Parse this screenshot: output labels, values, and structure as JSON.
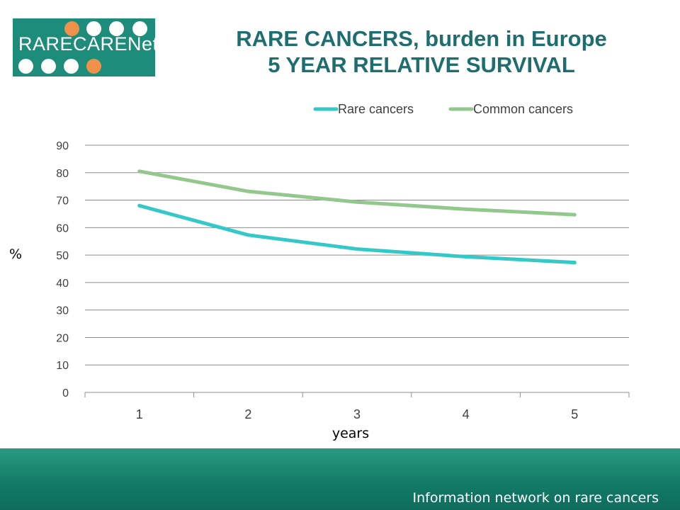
{
  "logo": {
    "text": "RARECARENet"
  },
  "title": {
    "line1": "RARE CANCERS, burden in Europe",
    "line2": "5 YEAR RELATIVE SURVIVAL"
  },
  "footer": {
    "text": "Information network on rare cancers"
  },
  "colors": {
    "rare": "#34c8c8",
    "common": "#92c88c",
    "title": "#1e6e70",
    "footer": "#137b68",
    "logo_bg": "#1e8c7a",
    "logo_accent": "#f0914a"
  },
  "chart_data": {
    "type": "line",
    "categories": [
      "1",
      "2",
      "3",
      "4",
      "5"
    ],
    "series": [
      {
        "name": "Rare cancers",
        "values": [
          68,
          57.3,
          52.2,
          49.4,
          47.3
        ]
      },
      {
        "name": "Common cancers",
        "values": [
          80.5,
          73.2,
          69.3,
          66.7,
          64.7
        ]
      }
    ],
    "xlabel": "years",
    "ylabel": "%",
    "ylim": [
      0,
      90
    ],
    "yticks": [
      "0",
      "10",
      "20",
      "30",
      "40",
      "50",
      "60",
      "70",
      "80",
      "90"
    ],
    "grid": true,
    "legend": "top"
  }
}
